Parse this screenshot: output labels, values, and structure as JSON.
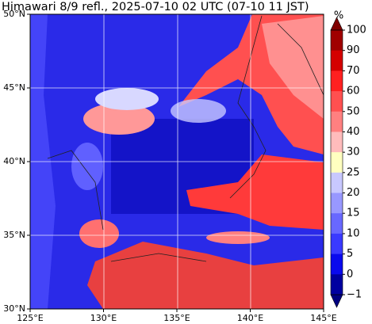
{
  "title": "Himawari 8/9 refl., 2025-07-10 02 UTC (07-10 11 JST)",
  "map": {
    "lon_labels": [
      "125°E",
      "130°E",
      "135°E",
      "140°E",
      "145°E"
    ],
    "lat_labels": [
      "50°N",
      "45°N",
      "40°N",
      "35°N",
      "30°N"
    ]
  },
  "colorbar": {
    "unit": "%",
    "labels": [
      "100",
      "90",
      "70",
      "60",
      "50",
      "40",
      "30",
      "25",
      "20",
      "15",
      "10",
      "5",
      "0",
      "−1"
    ],
    "colors": [
      "#a00000",
      "#d40000",
      "#ff2020",
      "#ff5050",
      "#ff8080",
      "#ffbcbc",
      "#ffffc0",
      "#c8c8ff",
      "#9898ff",
      "#6868ff",
      "#3a3aff",
      "#0a0aee",
      "#0000a0"
    ],
    "over_color": "#800000",
    "under_color": "#000080"
  }
}
